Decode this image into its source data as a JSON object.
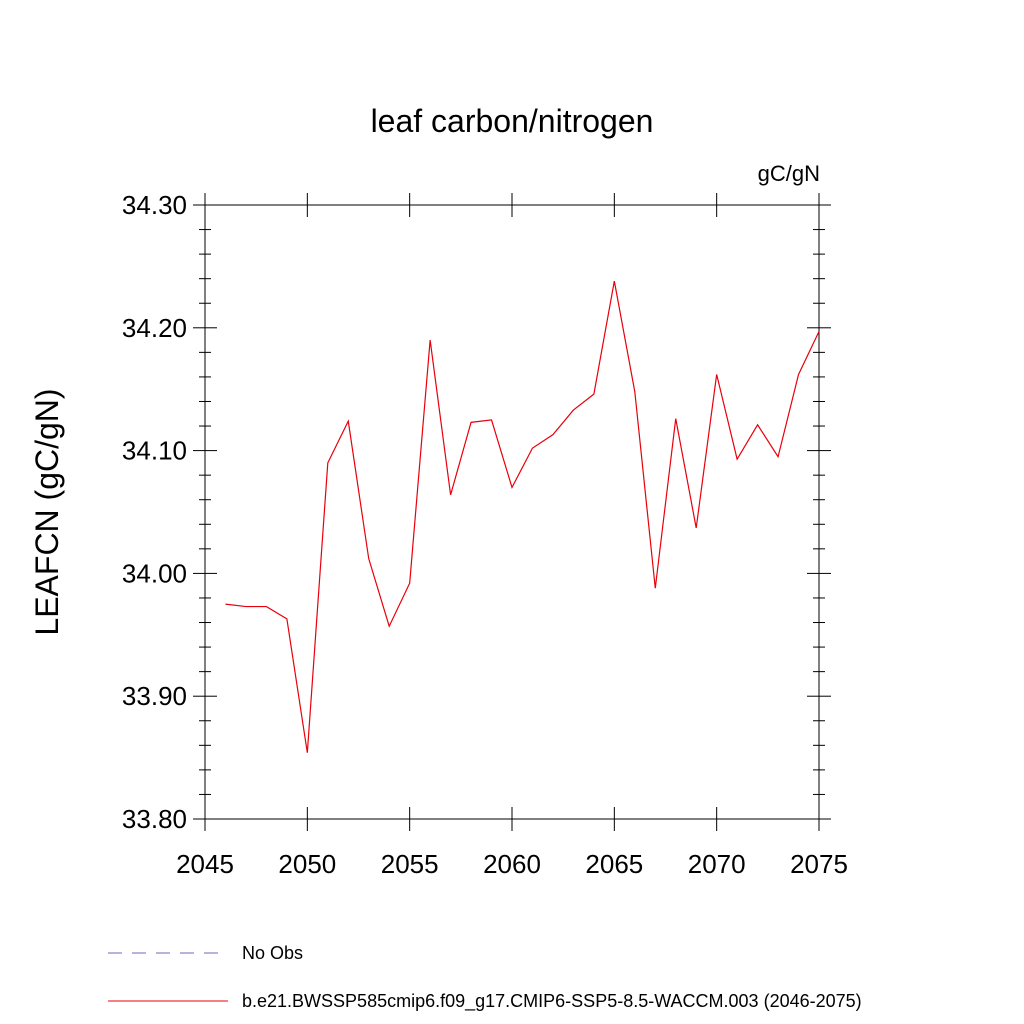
{
  "chart_data": {
    "type": "line",
    "title": "leaf carbon/nitrogen",
    "units": "gC/gN",
    "xlabel": "",
    "ylabel": "LEAFCN  (gC/gN)",
    "xlim": [
      2045,
      2075
    ],
    "ylim": [
      33.8,
      34.3
    ],
    "x_ticks": [
      2045,
      2050,
      2055,
      2060,
      2065,
      2070,
      2075
    ],
    "y_ticks": [
      "33.80",
      "33.90",
      "34.00",
      "34.10",
      "34.20",
      "34.30"
    ],
    "y_tick_values": [
      33.8,
      33.9,
      34.0,
      34.1,
      34.2,
      34.3
    ],
    "grid": false,
    "legend_position": "bottom",
    "series": [
      {
        "name": "No Obs",
        "color": "#6a6ab8",
        "style": "dashed",
        "x": [],
        "y": []
      },
      {
        "name": "b.e21.BWSSP585cmip6.f09_g17.CMIP6-SSP5-8.5-WACCM.003 (2046-2075)",
        "color": "#e8000b",
        "style": "solid",
        "x": [
          2046,
          2047,
          2048,
          2049,
          2050,
          2051,
          2052,
          2053,
          2054,
          2055,
          2056,
          2057,
          2058,
          2059,
          2060,
          2061,
          2062,
          2063,
          2064,
          2065,
          2066,
          2067,
          2068,
          2069,
          2070,
          2071,
          2072,
          2073,
          2074,
          2075
        ],
        "y": [
          33.975,
          33.973,
          33.973,
          33.963,
          33.854,
          34.09,
          34.124,
          34.012,
          33.957,
          33.992,
          34.19,
          34.064,
          34.123,
          34.125,
          34.07,
          34.102,
          34.113,
          34.133,
          34.146,
          34.238,
          34.148,
          33.988,
          34.126,
          34.037,
          34.162,
          34.093,
          34.121,
          34.095,
          34.162,
          34.197
        ]
      }
    ]
  }
}
